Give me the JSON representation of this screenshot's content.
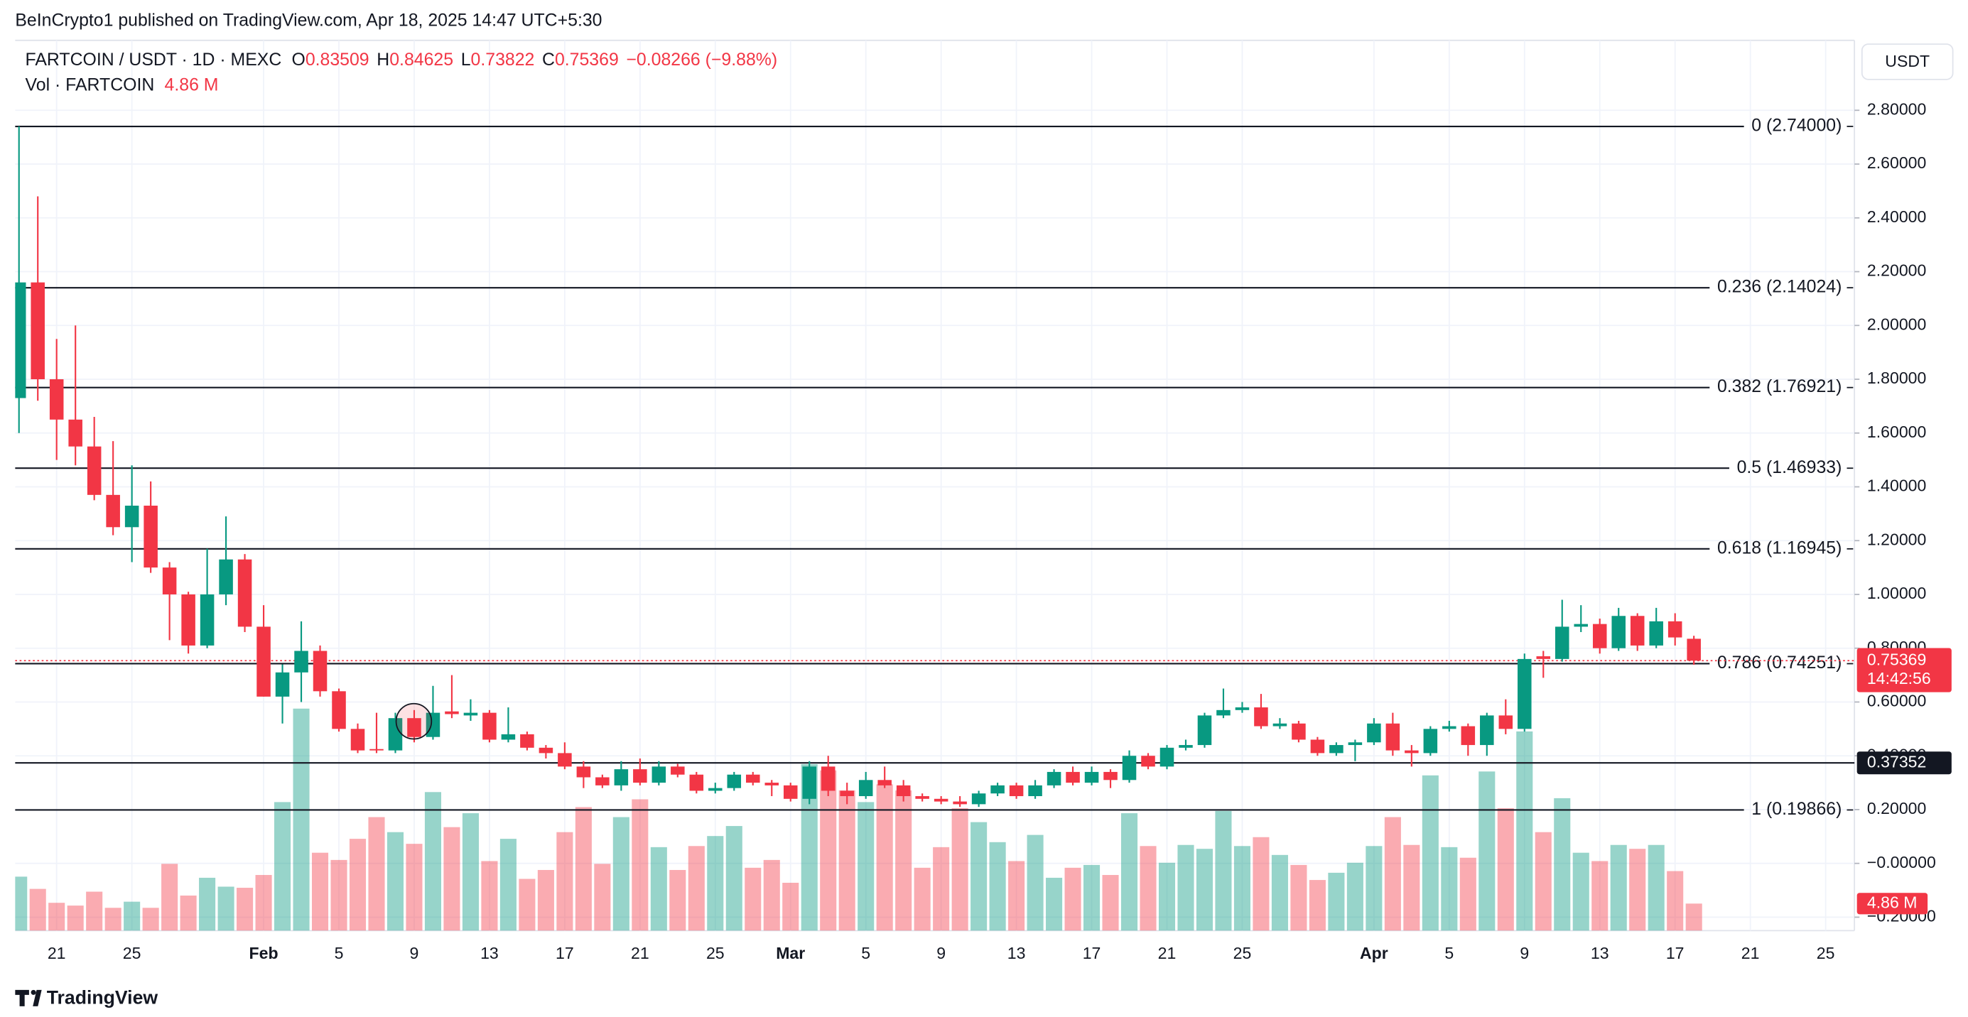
{
  "header": "BeInCrypto1 published on TradingView.com, Apr 18, 2025 14:47 UTC+5:30",
  "footer": "TradingView",
  "chart_data": {
    "type": "candlestick",
    "symbol": "FARTCOIN / USDT · 1D · MEXC",
    "ohlc_keys": [
      "O",
      "H",
      "L",
      "C"
    ],
    "change": "−0.08266 (−9.88%)",
    "volume_legend": "Vol · FARTCOIN",
    "last_volume_label": "4.86 M",
    "currency": "USDT",
    "countdown": "14:42:56",
    "up_color": "#089981",
    "down_color": "#f23645",
    "x": [
      "2025-01-19",
      "2025-01-20",
      "2025-01-21",
      "2025-01-22",
      "2025-01-23",
      "2025-01-24",
      "2025-01-25",
      "2025-01-26",
      "2025-01-27",
      "2025-01-28",
      "2025-01-29",
      "2025-01-30",
      "2025-01-31",
      "2025-02-01",
      "2025-02-02",
      "2025-02-03",
      "2025-02-04",
      "2025-02-05",
      "2025-02-06",
      "2025-02-07",
      "2025-02-08",
      "2025-02-09",
      "2025-02-10",
      "2025-02-11",
      "2025-02-12",
      "2025-02-13",
      "2025-02-14",
      "2025-02-15",
      "2025-02-16",
      "2025-02-17",
      "2025-02-18",
      "2025-02-19",
      "2025-02-20",
      "2025-02-21",
      "2025-02-22",
      "2025-02-23",
      "2025-02-24",
      "2025-02-25",
      "2025-02-26",
      "2025-02-27",
      "2025-02-28",
      "2025-03-01",
      "2025-03-02",
      "2025-03-03",
      "2025-03-04",
      "2025-03-05",
      "2025-03-06",
      "2025-03-07",
      "2025-03-08",
      "2025-03-09",
      "2025-03-10",
      "2025-03-11",
      "2025-03-12",
      "2025-03-13",
      "2025-03-14",
      "2025-03-15",
      "2025-03-16",
      "2025-03-17",
      "2025-03-18",
      "2025-03-19",
      "2025-03-20",
      "2025-03-21",
      "2025-03-22",
      "2025-03-23",
      "2025-03-24",
      "2025-03-25",
      "2025-03-26",
      "2025-03-27",
      "2025-03-28",
      "2025-03-29",
      "2025-03-30",
      "2025-03-31",
      "2025-04-01",
      "2025-04-02",
      "2025-04-03",
      "2025-04-04",
      "2025-04-05",
      "2025-04-06",
      "2025-04-07",
      "2025-04-08",
      "2025-04-09",
      "2025-04-10",
      "2025-04-11",
      "2025-04-12",
      "2025-04-13",
      "2025-04-14",
      "2025-04-15",
      "2025-04-16",
      "2025-04-17",
      "2025-04-18"
    ],
    "open": [
      1.73,
      2.16,
      1.8,
      1.65,
      1.55,
      1.37,
      1.25,
      1.33,
      1.1,
      1.0,
      0.81,
      1.0,
      1.13,
      0.88,
      0.62,
      0.71,
      0.79,
      0.64,
      0.5,
      0.425,
      0.42,
      0.54,
      0.47,
      0.565,
      0.55,
      0.56,
      0.46,
      0.48,
      0.43,
      0.41,
      0.36,
      0.32,
      0.29,
      0.35,
      0.3,
      0.36,
      0.33,
      0.27,
      0.28,
      0.33,
      0.3,
      0.29,
      0.24,
      0.36,
      0.27,
      0.25,
      0.31,
      0.29,
      0.25,
      0.24,
      0.23,
      0.22,
      0.26,
      0.29,
      0.25,
      0.29,
      0.34,
      0.3,
      0.34,
      0.31,
      0.4,
      0.36,
      0.43,
      0.44,
      0.55,
      0.57,
      0.58,
      0.51,
      0.52,
      0.46,
      0.41,
      0.44,
      0.45,
      0.52,
      0.42,
      0.41,
      0.5,
      0.51,
      0.44,
      0.55,
      0.5,
      0.77,
      0.76,
      0.88,
      0.89,
      0.8,
      0.92,
      0.81,
      0.9,
      0.83509
    ],
    "high": [
      2.74,
      2.48,
      1.95,
      2.0,
      1.66,
      1.57,
      1.48,
      1.42,
      1.12,
      1.01,
      1.17,
      1.29,
      1.15,
      0.96,
      0.74,
      0.9,
      0.81,
      0.65,
      0.52,
      0.56,
      0.56,
      0.57,
      0.66,
      0.7,
      0.61,
      0.57,
      0.58,
      0.49,
      0.44,
      0.45,
      0.38,
      0.33,
      0.38,
      0.39,
      0.38,
      0.37,
      0.34,
      0.3,
      0.34,
      0.34,
      0.31,
      0.3,
      0.38,
      0.4,
      0.3,
      0.34,
      0.36,
      0.31,
      0.26,
      0.25,
      0.25,
      0.27,
      0.3,
      0.3,
      0.31,
      0.35,
      0.36,
      0.36,
      0.35,
      0.42,
      0.41,
      0.44,
      0.46,
      0.56,
      0.65,
      0.6,
      0.63,
      0.54,
      0.53,
      0.47,
      0.45,
      0.46,
      0.54,
      0.56,
      0.44,
      0.51,
      0.53,
      0.52,
      0.56,
      0.61,
      0.78,
      0.79,
      0.98,
      0.96,
      0.91,
      0.95,
      0.93,
      0.95,
      0.93,
      0.84625
    ],
    "low": [
      1.6,
      1.72,
      1.5,
      1.48,
      1.35,
      1.22,
      1.12,
      1.08,
      0.83,
      0.78,
      0.8,
      0.96,
      0.86,
      0.62,
      0.52,
      0.6,
      0.62,
      0.49,
      0.41,
      0.41,
      0.41,
      0.45,
      0.46,
      0.54,
      0.53,
      0.45,
      0.45,
      0.42,
      0.39,
      0.35,
      0.28,
      0.28,
      0.27,
      0.29,
      0.29,
      0.32,
      0.26,
      0.26,
      0.27,
      0.29,
      0.25,
      0.23,
      0.22,
      0.25,
      0.22,
      0.24,
      0.28,
      0.23,
      0.23,
      0.22,
      0.21,
      0.21,
      0.25,
      0.24,
      0.24,
      0.28,
      0.29,
      0.29,
      0.28,
      0.3,
      0.35,
      0.35,
      0.42,
      0.43,
      0.54,
      0.56,
      0.5,
      0.5,
      0.45,
      0.4,
      0.4,
      0.38,
      0.44,
      0.4,
      0.36,
      0.4,
      0.49,
      0.4,
      0.4,
      0.48,
      0.49,
      0.69,
      0.75,
      0.86,
      0.78,
      0.79,
      0.79,
      0.8,
      0.81,
      0.73822
    ],
    "close": [
      2.16,
      1.8,
      1.65,
      1.55,
      1.37,
      1.25,
      1.33,
      1.1,
      1.0,
      0.81,
      1.0,
      1.13,
      0.88,
      0.62,
      0.71,
      0.79,
      0.64,
      0.5,
      0.42,
      0.42,
      0.54,
      0.47,
      0.56,
      0.555,
      0.56,
      0.46,
      0.48,
      0.43,
      0.41,
      0.36,
      0.32,
      0.29,
      0.35,
      0.3,
      0.36,
      0.33,
      0.27,
      0.28,
      0.33,
      0.3,
      0.29,
      0.24,
      0.36,
      0.27,
      0.25,
      0.31,
      0.29,
      0.25,
      0.24,
      0.23,
      0.22,
      0.26,
      0.29,
      0.25,
      0.29,
      0.34,
      0.3,
      0.34,
      0.31,
      0.4,
      0.36,
      0.43,
      0.44,
      0.55,
      0.57,
      0.58,
      0.51,
      0.52,
      0.46,
      0.41,
      0.44,
      0.45,
      0.52,
      0.42,
      0.41,
      0.5,
      0.51,
      0.44,
      0.55,
      0.5,
      0.76,
      0.76,
      0.88,
      0.89,
      0.8,
      0.92,
      0.81,
      0.9,
      0.84,
      0.75369
    ],
    "volume": [
      9.7,
      7.5,
      5.0,
      4.5,
      7.0,
      4.1,
      5.2,
      4.1,
      12.0,
      6.3,
      9.5,
      7.9,
      7.7,
      10.0,
      23.1,
      39.9,
      14.0,
      12.7,
      16.5,
      20.4,
      17.7,
      15.6,
      24.9,
      18.6,
      21.1,
      12.5,
      16.5,
      9.3,
      10.9,
      17.7,
      22.2,
      12.0,
      20.4,
      23.6,
      15.0,
      10.9,
      15.2,
      17.0,
      18.8,
      11.3,
      12.7,
      8.6,
      29.9,
      28.8,
      25.2,
      23.1,
      26.3,
      25.2,
      11.3,
      15.0,
      22.0,
      19.5,
      15.9,
      12.5,
      17.2,
      9.5,
      11.3,
      11.8,
      10.0,
      21.1,
      15.2,
      12.2,
      15.4,
      14.7,
      21.5,
      15.2,
      16.8,
      13.6,
      11.8,
      9.1,
      10.4,
      12.2,
      15.2,
      20.4,
      15.4,
      27.9,
      15.0,
      13.1,
      28.6,
      22.0,
      35.8,
      17.7,
      23.8,
      14.0,
      12.5,
      15.4,
      14.7,
      15.4,
      10.7,
      4.86
    ],
    "volume_ylim": [
      0,
      160
    ],
    "xlim": [
      "2025-01-18",
      "2025-04-27"
    ],
    "xticks": [
      {
        "value": "2025-01-21",
        "label": "21"
      },
      {
        "value": "2025-01-25",
        "label": "25"
      },
      {
        "value": "2025-02-01",
        "label": "Feb"
      },
      {
        "value": "2025-02-05",
        "label": "5"
      },
      {
        "value": "2025-02-09",
        "label": "9"
      },
      {
        "value": "2025-02-13",
        "label": "13"
      },
      {
        "value": "2025-02-17",
        "label": "17"
      },
      {
        "value": "2025-02-21",
        "label": "21"
      },
      {
        "value": "2025-02-25",
        "label": "25"
      },
      {
        "value": "2025-03-01",
        "label": "Mar"
      },
      {
        "value": "2025-03-05",
        "label": "5"
      },
      {
        "value": "2025-03-09",
        "label": "9"
      },
      {
        "value": "2025-03-13",
        "label": "13"
      },
      {
        "value": "2025-03-17",
        "label": "17"
      },
      {
        "value": "2025-03-21",
        "label": "21"
      },
      {
        "value": "2025-03-25",
        "label": "25"
      },
      {
        "value": "2025-04-01",
        "label": "Apr"
      },
      {
        "value": "2025-04-05",
        "label": "5"
      },
      {
        "value": "2025-04-09",
        "label": "9"
      },
      {
        "value": "2025-04-13",
        "label": "13"
      },
      {
        "value": "2025-04-17",
        "label": "17"
      },
      {
        "value": "2025-04-21",
        "label": "21"
      },
      {
        "value": "2025-04-25",
        "label": "25"
      }
    ],
    "ylim": [
      -0.25,
      3.06
    ],
    "yticks": [
      {
        "value": 2.8,
        "label": "2.80000"
      },
      {
        "value": 2.6,
        "label": "2.60000"
      },
      {
        "value": 2.4,
        "label": "2.40000"
      },
      {
        "value": 2.2,
        "label": "2.20000"
      },
      {
        "value": 2.0,
        "label": "2.00000"
      },
      {
        "value": 1.8,
        "label": "1.80000"
      },
      {
        "value": 1.6,
        "label": "1.60000"
      },
      {
        "value": 1.4,
        "label": "1.40000"
      },
      {
        "value": 1.2,
        "label": "1.20000"
      },
      {
        "value": 1.0,
        "label": "1.00000"
      },
      {
        "value": 0.8,
        "label": "0.80000"
      },
      {
        "value": 0.6,
        "label": "0.60000"
      },
      {
        "value": 0.4,
        "label": "0.40000"
      },
      {
        "value": 0.2,
        "label": "0.20000"
      },
      {
        "value": 0,
        "label": "−0.00000"
      },
      {
        "value": -0.2,
        "label": "−0.20000"
      }
    ],
    "grid": true,
    "fib_levels": [
      {
        "value": 2.74,
        "label": "0 (2.74000)"
      },
      {
        "value": 2.14024,
        "label": "0.236 (2.14024)"
      },
      {
        "value": 1.76921,
        "label": "0.382 (1.76921)"
      },
      {
        "value": 1.46933,
        "label": "0.5 (1.46933)"
      },
      {
        "value": 1.16945,
        "label": "0.618 (1.16945)"
      },
      {
        "value": 0.74251,
        "label": "0.786 (0.74251)"
      },
      {
        "value": 0.19866,
        "label": "1 (0.19866)"
      }
    ],
    "marker_line": {
      "value": 0.37352
    }
  }
}
